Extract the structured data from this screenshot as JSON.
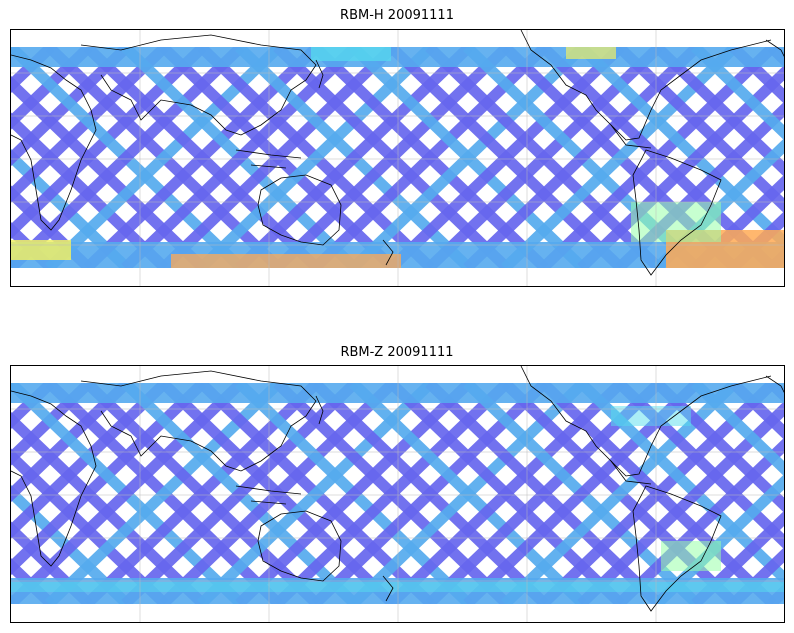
{
  "panels": [
    {
      "title": "RBM-H 20091111"
    },
    {
      "title": "RBM-Z 20091111"
    }
  ],
  "colors": {
    "track_low": "#6666ee",
    "track_mid": "#55aaee",
    "track_cyan": "#55ddee",
    "track_green": "#99ffaa",
    "track_yellow": "#eeee66",
    "track_orange": "#ffaa55",
    "coastline": "#000000",
    "grid": "#bbbbbb"
  }
}
